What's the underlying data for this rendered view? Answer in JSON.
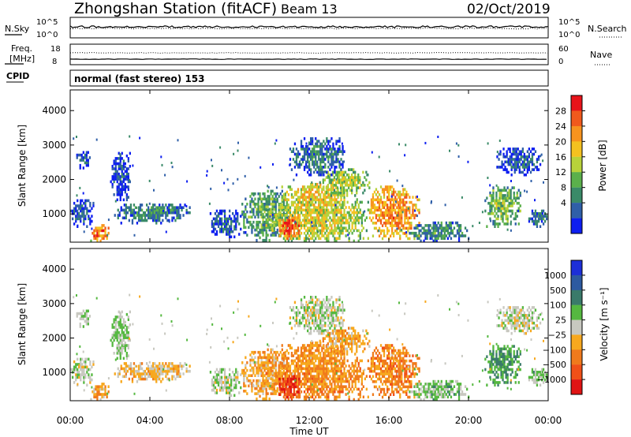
{
  "header": {
    "title": "Zhongshan Station (fitACF)",
    "beam": "Beam 13",
    "date": "02/Oct/2019"
  },
  "noise_panel": {
    "left_label": "N.Sky",
    "right_label": "N.Search",
    "left_ticks": [
      "10^5",
      "10^0"
    ],
    "right_ticks": [
      "10^5",
      "10^0"
    ]
  },
  "freq_panel": {
    "left_label_line1": "Freq.",
    "left_label_line2": "[MHz]",
    "left_ticks": [
      "18",
      "8"
    ],
    "right_label": "Nave",
    "right_ticks": [
      "60",
      "0"
    ]
  },
  "cpid": {
    "label": "CPID",
    "text": "normal (fast stereo) 153"
  },
  "x_axis": {
    "label": "Time UT",
    "ticks": [
      "00:00",
      "04:00",
      "08:00",
      "12:00",
      "16:00",
      "20:00",
      "00:00"
    ]
  },
  "panels": [
    {
      "ylabel": "Slant Range [km]",
      "yticks": [
        "4000",
        "3000",
        "2000",
        "1000"
      ],
      "colorbar_label": "Power [dB]",
      "colorbar_ticks": [
        "28",
        "24",
        "20",
        "16",
        "12",
        "8",
        "4"
      ],
      "colorbar_colors": [
        "#e8141a",
        "#f0591c",
        "#f7931e",
        "#f4c120",
        "#b8d23a",
        "#5bb04b",
        "#3a8a68",
        "#2f5fa8",
        "#0d1ef0"
      ]
    },
    {
      "ylabel": "Slant Range [km]",
      "yticks": [
        "4000",
        "3000",
        "2000",
        "1000"
      ],
      "colorbar_label": "Velocity [m s⁻¹]",
      "colorbar_ticks": [
        "1000",
        "500",
        "100",
        "25",
        "−25",
        "−100",
        "−500",
        "−1000"
      ],
      "colorbar_colors": [
        "#1d2fd8",
        "#2d5aa0",
        "#3a7a6a",
        "#55b840",
        "#c8c8c0",
        "#f7a81e",
        "#f07a1c",
        "#f05018",
        "#e01414"
      ]
    }
  ],
  "chart_data": {
    "type": "heatmap",
    "title": "Zhongshan Station (fitACF) Beam 13",
    "date": "02/Oct/2019",
    "xlabel": "Time UT",
    "xlim_hours": [
      0,
      24
    ],
    "ylabel": "Slant Range [km]",
    "ylim_km": [
      180,
      4600
    ],
    "power_db_range": [
      0,
      32
    ],
    "velocity_ms_range": [
      -1200,
      1200
    ],
    "blobs": [
      {
        "t0": 0.0,
        "t1": 1.2,
        "r0": 600,
        "r1": 1400,
        "power": 6,
        "velocity": 20
      },
      {
        "t0": 1.0,
        "t1": 1.9,
        "r0": 180,
        "r1": 650,
        "power": 26,
        "velocity": -300
      },
      {
        "t0": 0.3,
        "t1": 1.0,
        "r0": 2300,
        "r1": 2800,
        "power": 5,
        "velocity": 150
      },
      {
        "t0": 2.0,
        "t1": 3.0,
        "r0": 1300,
        "r1": 2800,
        "power": 5,
        "velocity": 150
      },
      {
        "t0": 2.2,
        "t1": 6.0,
        "r0": 700,
        "r1": 1300,
        "power": 9,
        "velocity": -200
      },
      {
        "t0": 7.0,
        "t1": 8.6,
        "r0": 300,
        "r1": 1100,
        "power": 6,
        "velocity": 80
      },
      {
        "t0": 8.6,
        "t1": 11.0,
        "r0": 200,
        "r1": 1700,
        "power": 12,
        "velocity": -300
      },
      {
        "t0": 9.8,
        "t1": 15.0,
        "r0": 180,
        "r1": 1400,
        "power": 18,
        "velocity": -450
      },
      {
        "t0": 10.6,
        "t1": 13.8,
        "r0": 1000,
        "r1": 1900,
        "power": 20,
        "velocity": -400
      },
      {
        "t0": 10.4,
        "t1": 11.6,
        "r0": 250,
        "r1": 900,
        "power": 28,
        "velocity": -900
      },
      {
        "t0": 12.5,
        "t1": 15.0,
        "r0": 1500,
        "r1": 2300,
        "power": 16,
        "velocity": -300
      },
      {
        "t0": 11.0,
        "t1": 13.8,
        "r0": 2100,
        "r1": 3200,
        "power": 8,
        "velocity": 60
      },
      {
        "t0": 15.0,
        "t1": 17.5,
        "r0": 250,
        "r1": 1800,
        "power": 24,
        "velocity": -500
      },
      {
        "t0": 17.0,
        "t1": 20.0,
        "r0": 180,
        "r1": 750,
        "power": 10,
        "velocity": 200
      },
      {
        "t0": 20.8,
        "t1": 22.6,
        "r0": 600,
        "r1": 1800,
        "power": 14,
        "velocity": 400
      },
      {
        "t0": 21.4,
        "t1": 23.6,
        "r0": 2100,
        "r1": 2900,
        "power": 6,
        "velocity": 0
      },
      {
        "t0": 23.0,
        "t1": 24.0,
        "r0": 600,
        "r1": 1100,
        "power": 8,
        "velocity": 200
      }
    ]
  }
}
